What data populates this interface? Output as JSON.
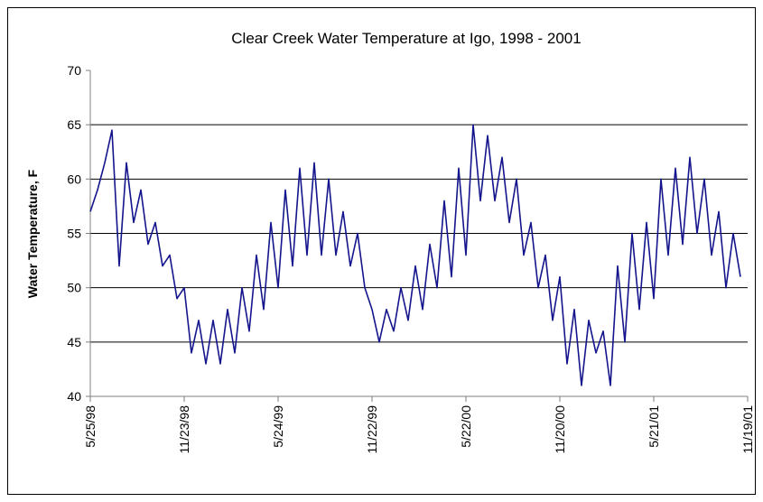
{
  "chart_data": {
    "type": "line",
    "title": "Clear Creek Water Temperature at Igo, 1998 - 2001",
    "y_label": "Water Temperature, F",
    "x": [
      "5/25/98",
      "6/8/98",
      "6/22/98",
      "7/6/98",
      "7/20/98",
      "8/3/98",
      "8/17/98",
      "8/31/98",
      "9/14/98",
      "9/28/98",
      "10/12/98",
      "10/26/98",
      "11/9/98",
      "11/23/98",
      "12/7/98",
      "12/21/98",
      "1/4/99",
      "1/18/99",
      "2/1/99",
      "2/15/99",
      "3/1/99",
      "3/15/99",
      "3/29/99",
      "4/12/99",
      "4/26/99",
      "5/10/99",
      "5/24/99",
      "6/7/99",
      "6/21/99",
      "7/5/99",
      "7/19/99",
      "8/2/99",
      "8/16/99",
      "8/30/99",
      "9/13/99",
      "9/27/99",
      "10/11/99",
      "10/25/99",
      "11/8/99",
      "11/22/99",
      "12/6/99",
      "12/20/99",
      "1/3/00",
      "1/17/00",
      "1/31/00",
      "2/14/00",
      "2/28/00",
      "3/13/00",
      "3/27/00",
      "4/10/00",
      "4/24/00",
      "5/8/00",
      "5/22/00",
      "6/5/00",
      "6/19/00",
      "7/3/00",
      "7/17/00",
      "7/31/00",
      "8/14/00",
      "8/28/00",
      "9/11/00",
      "9/25/00",
      "10/9/00",
      "10/23/00",
      "11/6/00",
      "11/20/00",
      "12/4/00",
      "12/18/00",
      "1/1/01",
      "1/15/01",
      "1/29/01",
      "2/12/01",
      "2/26/01",
      "3/12/01",
      "3/26/01",
      "4/9/01",
      "4/23/01",
      "5/7/01",
      "5/21/01",
      "6/4/01",
      "6/18/01",
      "7/2/01",
      "7/16/01",
      "7/30/01",
      "8/13/01",
      "8/27/01",
      "9/10/01",
      "9/24/01",
      "10/8/01",
      "10/22/01",
      "11/5/01"
    ],
    "series": [
      {
        "name": "Water Temperature",
        "color": "#14148c",
        "values": [
          57,
          59,
          61.5,
          64.5,
          52,
          61.5,
          56,
          59,
          54,
          56,
          52,
          53,
          49,
          50,
          44,
          47,
          43,
          47,
          43,
          48,
          44,
          50,
          46,
          53,
          48,
          56,
          50,
          59,
          52,
          61,
          53,
          61.5,
          53,
          60,
          53,
          57,
          52,
          55,
          50,
          48,
          45,
          48,
          46,
          50,
          47,
          52,
          48,
          54,
          50,
          58,
          51,
          61,
          53,
          65,
          58,
          64,
          58,
          62,
          56,
          60,
          53,
          56,
          50,
          53,
          47,
          51,
          43,
          48,
          41,
          47,
          44,
          46,
          41,
          52,
          45,
          55,
          48,
          56,
          49,
          60,
          53,
          61,
          54,
          62,
          55,
          60,
          53,
          57,
          50,
          55,
          51
        ]
      }
    ],
    "xlim": [
      "5/25/98",
      "11/19/01"
    ],
    "xticks": [
      "5/25/98",
      "11/23/98",
      "5/24/99",
      "11/22/99",
      "5/22/00",
      "11/20/00",
      "5/21/01",
      "11/19/01"
    ],
    "ylim": [
      40,
      70
    ],
    "yticks": [
      40,
      45,
      50,
      55,
      60,
      65,
      70
    ],
    "grid": true
  }
}
